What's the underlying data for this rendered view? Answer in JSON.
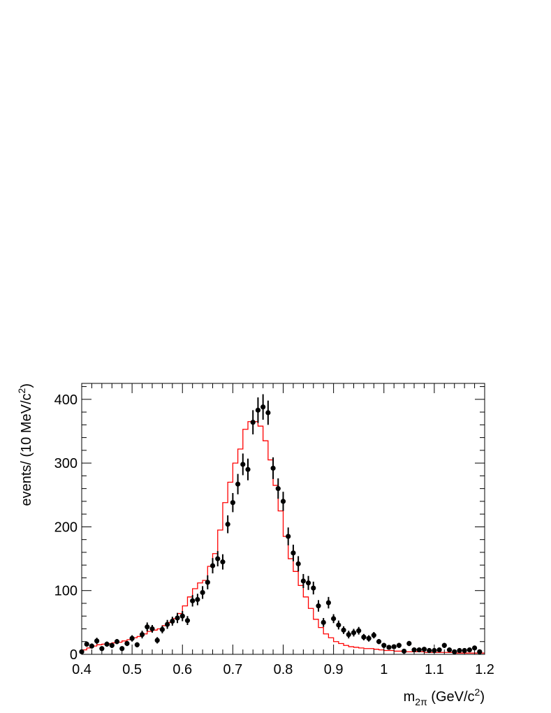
{
  "chart_data": {
    "type": "scatter",
    "xlabel": "m2π (GeV/c2)",
    "xlabel_parts": {
      "main": "m",
      "sub": "2π",
      "rest": " (GeV/c",
      "sup": "2",
      "end": ")"
    },
    "ylabel": "events/ (10 MeV/c2)",
    "ylabel_parts": {
      "main": "events/ (10 MeV/c",
      "sup": "2",
      "end": ")"
    },
    "xlim": [
      0.4,
      1.2
    ],
    "ylim": [
      0,
      425
    ],
    "x_ticks": [
      "0.4",
      "0.5",
      "0.6",
      "0.7",
      "0.8",
      "0.9",
      "1",
      "1.1",
      "1.2"
    ],
    "y_ticks": [
      "0",
      "100",
      "200",
      "300",
      "400"
    ],
    "grid": false,
    "series": [
      {
        "kind": "points-with-errorbars",
        "color": "#000000",
        "x": [
          0.4,
          0.41,
          0.42,
          0.43,
          0.44,
          0.45,
          0.46,
          0.47,
          0.48,
          0.49,
          0.5,
          0.51,
          0.52,
          0.53,
          0.54,
          0.55,
          0.56,
          0.57,
          0.58,
          0.59,
          0.6,
          0.61,
          0.62,
          0.63,
          0.64,
          0.65,
          0.66,
          0.67,
          0.68,
          0.69,
          0.7,
          0.71,
          0.72,
          0.73,
          0.74,
          0.75,
          0.76,
          0.77,
          0.78,
          0.79,
          0.8,
          0.81,
          0.82,
          0.83,
          0.84,
          0.85,
          0.86,
          0.87,
          0.88,
          0.89,
          0.9,
          0.91,
          0.92,
          0.93,
          0.94,
          0.95,
          0.96,
          0.97,
          0.98,
          0.99,
          1.0,
          1.01,
          1.02,
          1.03,
          1.04,
          1.05,
          1.06,
          1.07,
          1.08,
          1.09,
          1.1,
          1.11,
          1.12,
          1.13,
          1.14,
          1.15,
          1.16,
          1.17,
          1.18,
          1.19
        ],
        "y": [
          4,
          16,
          13,
          21,
          9,
          16,
          14,
          20,
          9,
          17,
          25,
          15,
          31,
          43,
          40,
          22,
          39,
          47,
          52,
          57,
          60,
          53,
          84,
          86,
          97,
          113,
          139,
          150,
          145,
          204,
          238,
          267,
          298,
          290,
          364,
          383,
          388,
          379,
          292,
          260,
          240,
          185,
          159,
          142,
          115,
          112,
          104,
          76,
          50,
          81,
          56,
          46,
          38,
          31,
          34,
          37,
          27,
          25,
          30,
          20,
          14,
          11,
          12,
          14,
          5,
          17,
          7,
          7,
          8,
          6,
          6,
          7,
          14,
          7,
          4,
          6,
          6,
          7,
          10,
          4
        ],
        "err": [
          2,
          4,
          4,
          5,
          3,
          4,
          4,
          4,
          3,
          4,
          5,
          4,
          6,
          7,
          6,
          5,
          6,
          7,
          7,
          8,
          8,
          7,
          9,
          9,
          10,
          11,
          12,
          12,
          12,
          14,
          15,
          16,
          17,
          17,
          19,
          20,
          20,
          19,
          17,
          16,
          15,
          14,
          13,
          12,
          11,
          11,
          10,
          9,
          7,
          9,
          7,
          7,
          6,
          6,
          6,
          6,
          5,
          5,
          5,
          4,
          4,
          3,
          3,
          4,
          2,
          4,
          3,
          3,
          3,
          2,
          2,
          3,
          4,
          3,
          2,
          2,
          2,
          3,
          3,
          2
        ]
      },
      {
        "kind": "step-histogram",
        "color": "#ff0000",
        "bin_edges_start": 0.4,
        "bin_width": 0.01,
        "values": [
          7,
          10,
          13,
          15,
          16,
          17,
          18,
          19,
          21,
          23,
          26,
          28,
          32,
          36,
          38,
          40,
          45,
          50,
          56,
          64,
          76,
          90,
          103,
          112,
          116,
          138,
          158,
          195,
          238,
          270,
          300,
          322,
          353,
          365,
          365,
          358,
          335,
          305,
          265,
          225,
          185,
          150,
          130,
          108,
          90,
          72,
          55,
          42,
          32,
          26,
          20,
          17,
          14,
          12,
          11,
          10,
          9,
          9,
          8,
          7,
          6,
          6,
          5,
          5,
          4,
          4,
          4,
          4,
          3,
          3,
          3,
          3,
          3,
          3,
          2,
          2,
          2,
          2,
          2,
          2
        ]
      }
    ]
  }
}
